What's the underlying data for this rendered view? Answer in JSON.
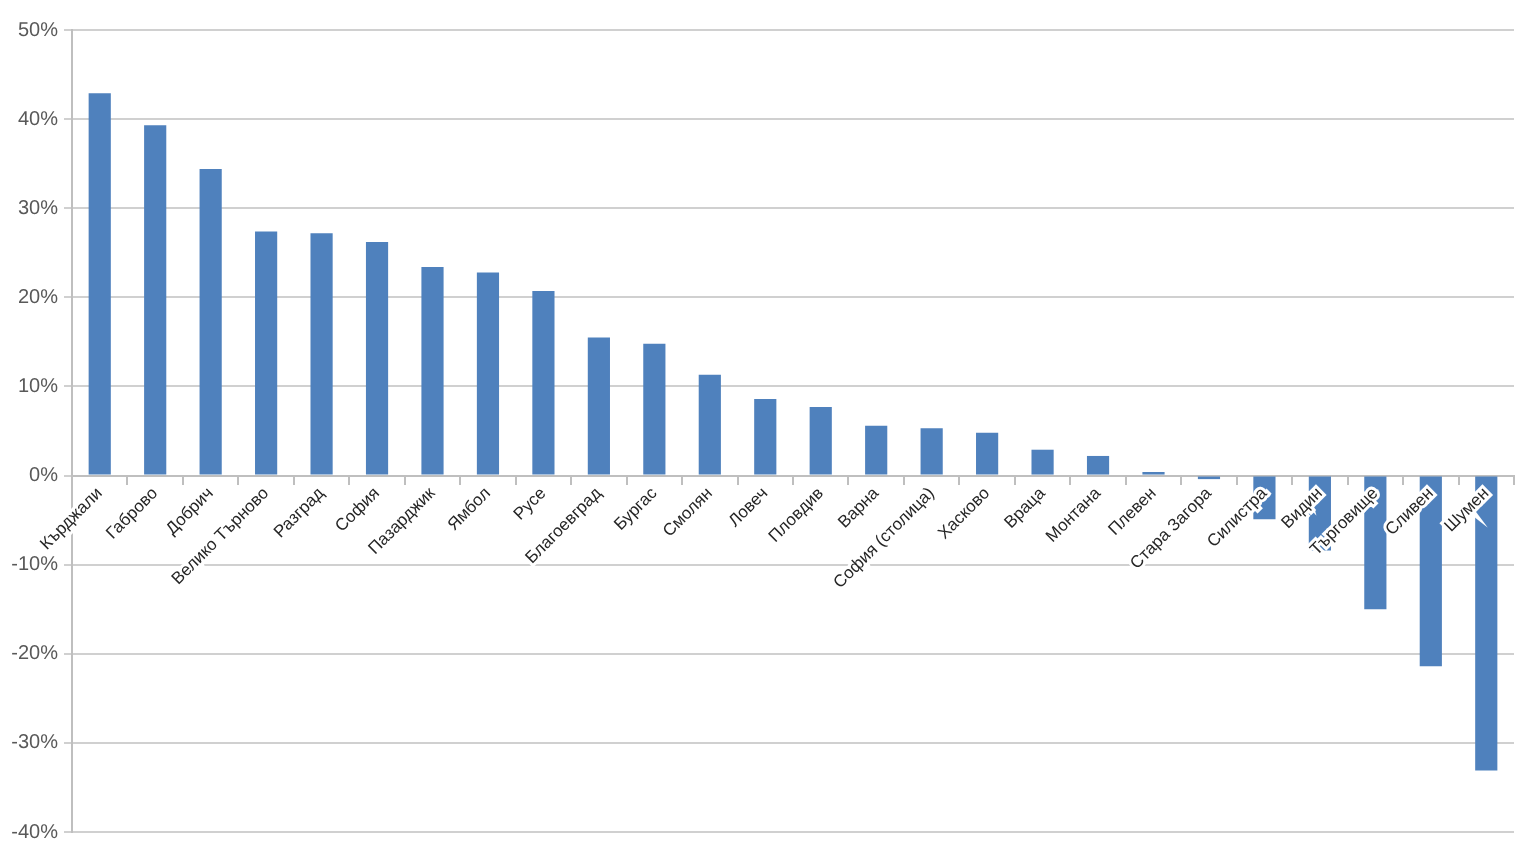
{
  "chart_data": {
    "type": "bar",
    "categories": [
      "Кърджали",
      "Габрово",
      "Добрич",
      "Велико Търново",
      "Разград",
      "София",
      "Пазарджик",
      "Ямбол",
      "Русе",
      "Благоевград",
      "Бургас",
      "Смолян",
      "Ловеч",
      "Пловдив",
      "Варна",
      "София (столица)",
      "Хасково",
      "Враца",
      "Монтана",
      "Плевен",
      "Стара Загора",
      "Силистра",
      "Видин",
      "Търговище",
      "Сливен",
      "Шумен"
    ],
    "values": [
      42.9,
      39.3,
      34.4,
      27.4,
      27.2,
      26.2,
      23.4,
      22.8,
      20.7,
      15.5,
      14.8,
      11.3,
      8.6,
      7.7,
      5.6,
      5.3,
      4.8,
      2.9,
      2.2,
      0.4,
      -0.4,
      -4.9,
      -8.4,
      -15.0,
      -21.4,
      -33.1
    ],
    "color": "#4f81bd",
    "ylim": [
      -40,
      50
    ],
    "yticks": [
      {
        "value": -40,
        "label": "-40%"
      },
      {
        "value": -30,
        "label": "-30%"
      },
      {
        "value": -20,
        "label": "-20%"
      },
      {
        "value": -10,
        "label": "-10%"
      },
      {
        "value": 0,
        "label": "0%"
      },
      {
        "value": 10,
        "label": "10%"
      },
      {
        "value": 20,
        "label": "20%"
      },
      {
        "value": 30,
        "label": "30%"
      },
      {
        "value": 40,
        "label": "40%"
      },
      {
        "value": 50,
        "label": "50%"
      }
    ],
    "grid": "y"
  }
}
